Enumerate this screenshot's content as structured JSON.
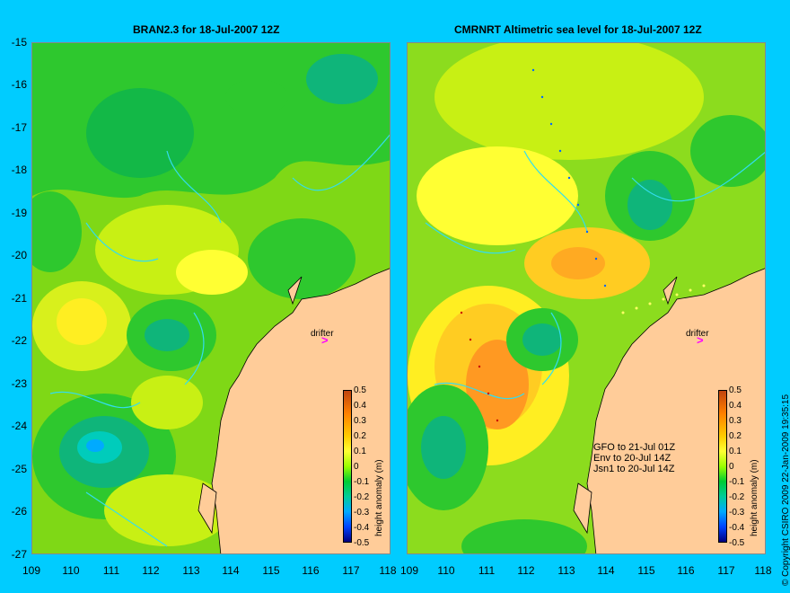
{
  "left_panel": {
    "title": "BRAN2.3 for 18-Jul-2007 12Z"
  },
  "right_panel": {
    "title": "CMRNRT Altimetric sea level  for 18-Jul-2007 12Z"
  },
  "y_axis_labels": [
    "-15",
    "-16",
    "-17",
    "-18",
    "-19",
    "-20",
    "-21",
    "-22",
    "-23",
    "-24",
    "-25",
    "-26",
    "-27"
  ],
  "x_axis_labels": [
    "109",
    "110",
    "111",
    "112",
    "113",
    "114",
    "115",
    "116",
    "117",
    "118"
  ],
  "colorbar": {
    "ticks": [
      "0.5",
      "0.4",
      "0.3",
      "0.2",
      "0.1",
      "0",
      "-0.1",
      "-0.2",
      "-0.3",
      "-0.4",
      "-0.5"
    ],
    "unit_label": "height anomaly (m)",
    "colors": [
      "#c1440e",
      "#ff8000",
      "#ffcc00",
      "#ffff33",
      "#9cff00",
      "#00cc33",
      "#00cc99",
      "#00aaff",
      "#0044ff",
      "#000080"
    ]
  },
  "drifter_label": "drifter",
  "satellites": [
    "GFO to 21-Jul 01Z",
    "Env to 20-Jul 14Z",
    "Jsn1 to 20-Jul 14Z"
  ],
  "copyright": "© Copyright CSIRO 2009  22-Jan-2009 19:35:15",
  "colors": {
    "background": "#00ccff",
    "land": "#ffcc99",
    "drifter_marker": "#ff00ff"
  }
}
